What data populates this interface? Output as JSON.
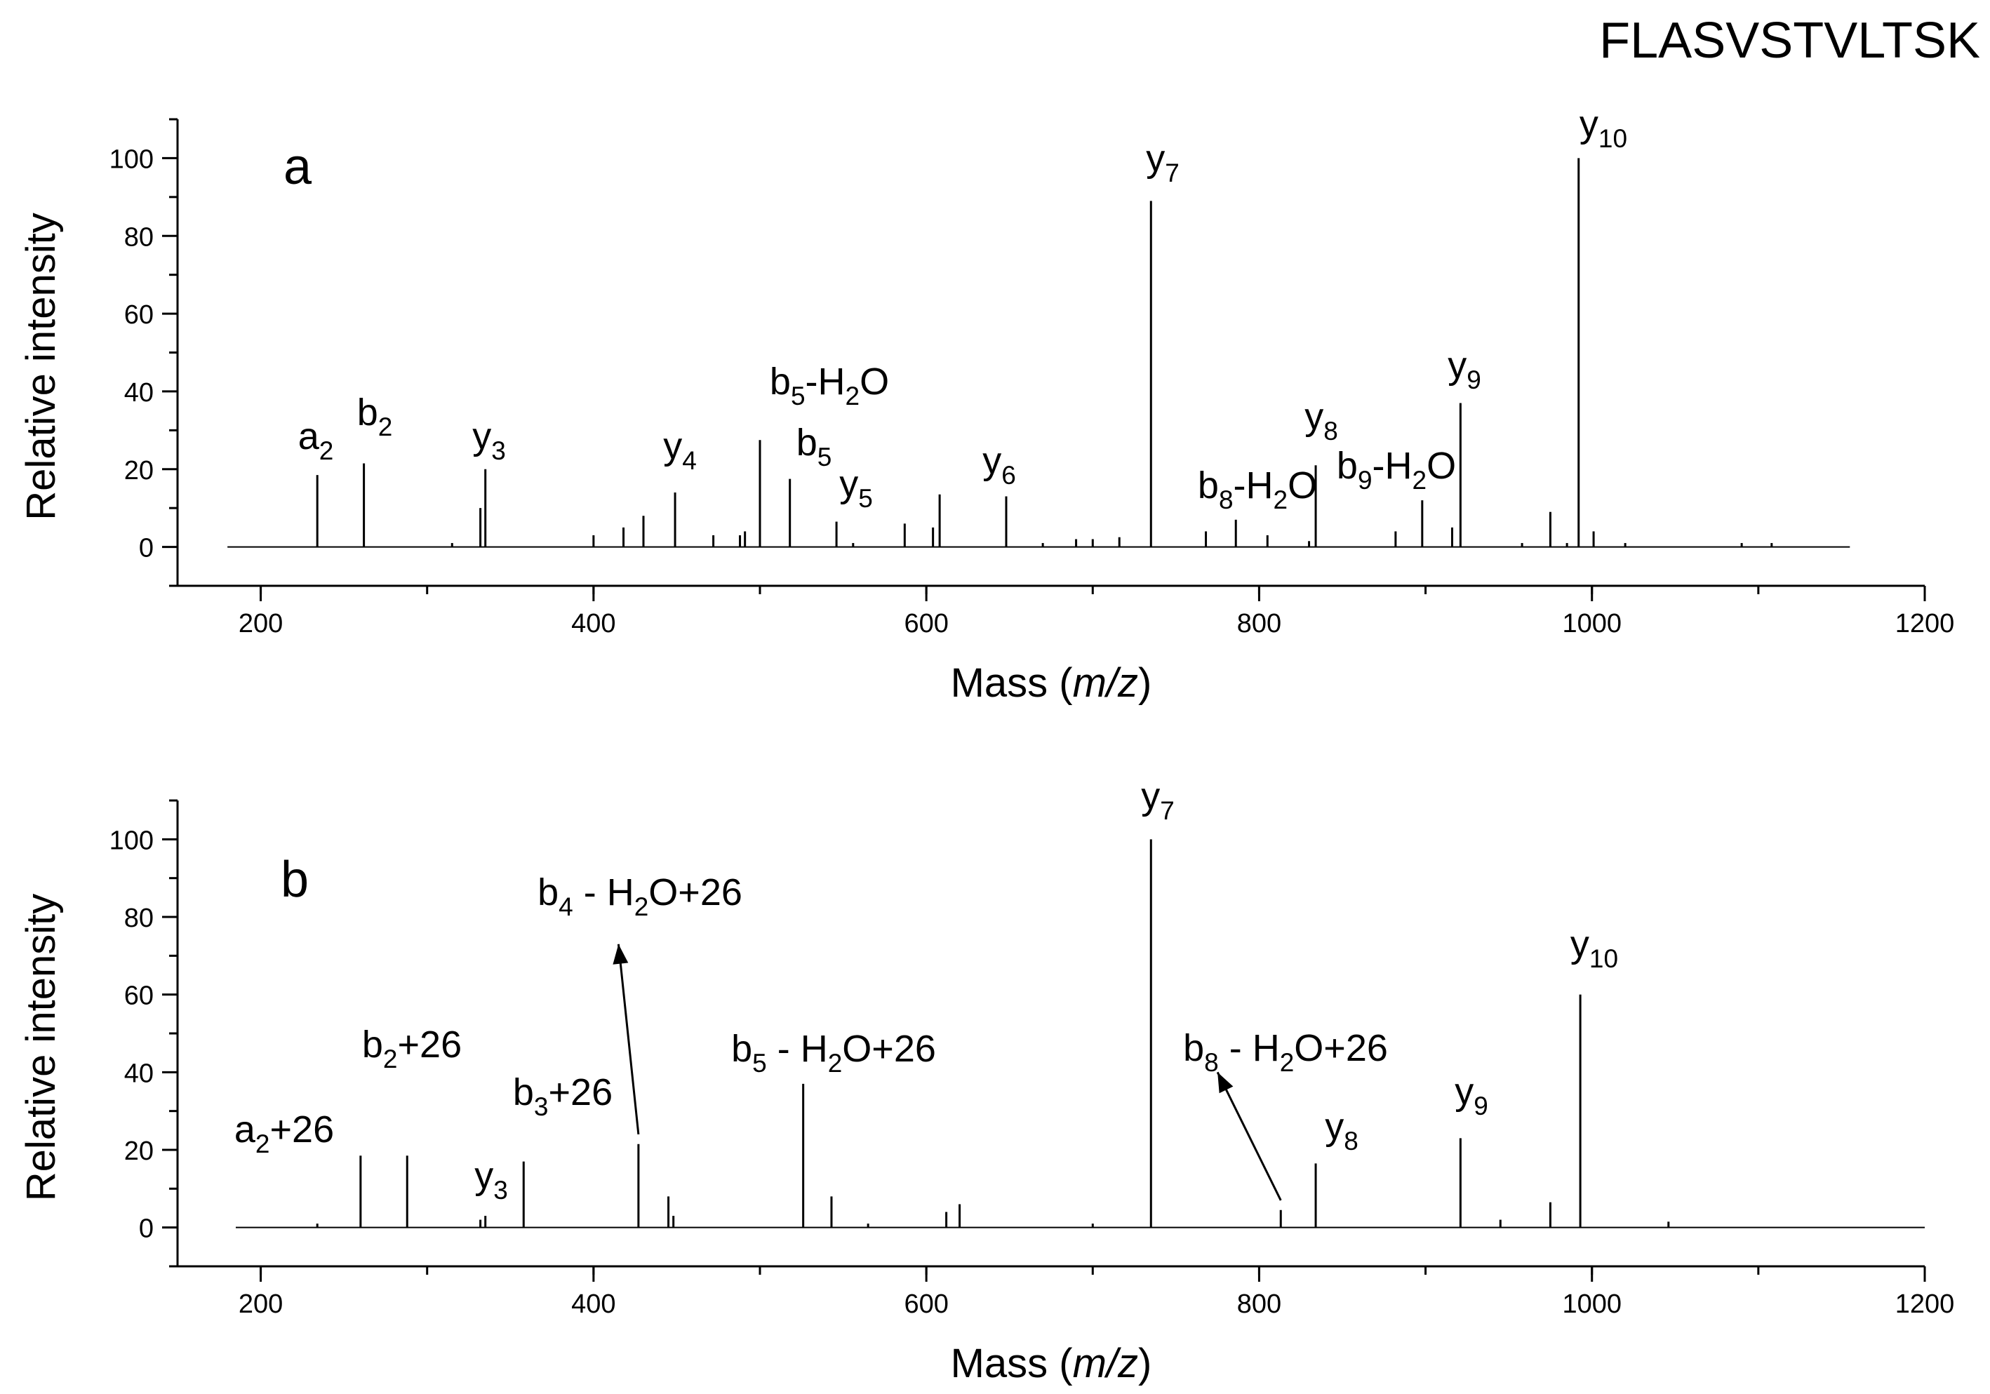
{
  "peptide": "FLASVSTVLTSK",
  "chart_data": [
    {
      "type": "bar",
      "panel": "a",
      "xlabel_prefix": "Mass (",
      "xlabel_italic": "m/z",
      "xlabel_suffix": ")",
      "ylabel": "Relative intensity",
      "xlim": [
        150,
        1200
      ],
      "ylim": [
        -10,
        110
      ],
      "data_range": [
        180,
        1155
      ],
      "xticks": [
        200,
        400,
        600,
        800,
        1000,
        1200
      ],
      "yticks": [
        0,
        20,
        40,
        60,
        80,
        100
      ],
      "peaks": [
        [
          234,
          18.5
        ],
        [
          262,
          21.5
        ],
        [
          315,
          1
        ],
        [
          332,
          10
        ],
        [
          335,
          20
        ],
        [
          400,
          3
        ],
        [
          418,
          5
        ],
        [
          430,
          8
        ],
        [
          449,
          14
        ],
        [
          472,
          3
        ],
        [
          488,
          3
        ],
        [
          491,
          4
        ],
        [
          500,
          27.5
        ],
        [
          518,
          17.5
        ],
        [
          546,
          6.5
        ],
        [
          556,
          1
        ],
        [
          587,
          6
        ],
        [
          604,
          5
        ],
        [
          608,
          13.5
        ],
        [
          648,
          13
        ],
        [
          670,
          1
        ],
        [
          690,
          2
        ],
        [
          700,
          2
        ],
        [
          716,
          2.5
        ],
        [
          735,
          89
        ],
        [
          768,
          4
        ],
        [
          786,
          7
        ],
        [
          805,
          3
        ],
        [
          830,
          1.5
        ],
        [
          834,
          21
        ],
        [
          882,
          4
        ],
        [
          898,
          12
        ],
        [
          916,
          5
        ],
        [
          921,
          37
        ],
        [
          958,
          1
        ],
        [
          975,
          9
        ],
        [
          985,
          1
        ],
        [
          992,
          100
        ],
        [
          1001,
          4
        ],
        [
          1020,
          1
        ],
        [
          1090,
          1
        ],
        [
          1108,
          1
        ]
      ],
      "annotations": [
        {
          "base": "a",
          "sub": "2",
          "rest": ""
        },
        {
          "base": "b",
          "sub": "2",
          "rest": ""
        },
        {
          "base": "y",
          "sub": "3",
          "rest": ""
        },
        {
          "base": "y",
          "sub": "4",
          "rest": ""
        },
        {
          "base": "b",
          "sub": "5",
          "rest": "-H",
          "sub2": "2",
          "rest2": "O"
        },
        {
          "base": "b",
          "sub": "5",
          "rest": ""
        },
        {
          "base": "y",
          "sub": "5",
          "rest": ""
        },
        {
          "base": "y",
          "sub": "6",
          "rest": ""
        },
        {
          "base": "y",
          "sub": "7",
          "rest": ""
        },
        {
          "base": "b",
          "sub": "8",
          "rest": "-H",
          "sub2": "2",
          "rest2": "O"
        },
        {
          "base": "y",
          "sub": "8",
          "rest": ""
        },
        {
          "base": "b",
          "sub": "9",
          "rest": "-H",
          "sub2": "2",
          "rest2": "O"
        },
        {
          "base": "y",
          "sub": "9",
          "rest": ""
        },
        {
          "base": "y",
          "sub": "10",
          "rest": ""
        }
      ],
      "arrows": []
    },
    {
      "type": "bar",
      "panel": "b",
      "xlabel_prefix": "Mass (",
      "xlabel_italic": "m/z",
      "xlabel_suffix": ")",
      "ylabel": "Relative intensity",
      "xlim": [
        150,
        1200
      ],
      "ylim": [
        -10,
        110
      ],
      "data_range": [
        185,
        1200
      ],
      "xticks": [
        200,
        400,
        600,
        800,
        1000,
        1200
      ],
      "yticks": [
        0,
        20,
        40,
        60,
        80,
        100
      ],
      "peaks": [
        [
          234,
          1
        ],
        [
          260,
          18.5
        ],
        [
          288,
          18.5
        ],
        [
          332,
          2
        ],
        [
          335,
          3
        ],
        [
          358,
          17
        ],
        [
          427,
          21.5
        ],
        [
          445,
          8
        ],
        [
          448,
          3
        ],
        [
          526,
          37
        ],
        [
          543,
          8
        ],
        [
          565,
          1
        ],
        [
          612,
          4
        ],
        [
          620,
          6
        ],
        [
          700,
          1
        ],
        [
          735,
          100
        ],
        [
          813,
          4.5
        ],
        [
          834,
          16.5
        ],
        [
          921,
          23
        ],
        [
          945,
          2
        ],
        [
          975,
          6.5
        ],
        [
          993,
          60
        ],
        [
          1046,
          1.5
        ]
      ],
      "annotations": [
        {
          "base": "a",
          "sub": "2",
          "rest": "+26"
        },
        {
          "base": "b",
          "sub": "2",
          "rest": "+26"
        },
        {
          "base": "b",
          "sub": "3",
          "rest": "+26"
        },
        {
          "base": "y",
          "sub": "3",
          "rest": ""
        },
        {
          "base": "b",
          "sub": "4",
          "rest": " - H",
          "sub2": "2",
          "rest2": "O+26"
        },
        {
          "base": "b",
          "sub": "5",
          "rest": " - H",
          "sub2": "2",
          "rest2": "O+26"
        },
        {
          "base": "y",
          "sub": "7",
          "rest": ""
        },
        {
          "base": "b",
          "sub": "8",
          "rest": " - H",
          "sub2": "2",
          "rest2": "O+26"
        },
        {
          "base": "y",
          "sub": "8",
          "rest": ""
        },
        {
          "base": "y",
          "sub": "9",
          "rest": ""
        },
        {
          "base": "y",
          "sub": "10",
          "rest": ""
        }
      ],
      "arrows": [
        {
          "from_mz": 427,
          "from_intensity": 24,
          "to_mz": 415,
          "to_intensity": 73
        },
        {
          "from_mz": 813,
          "from_intensity": 7,
          "to_mz": 775,
          "to_intensity": 40
        }
      ]
    }
  ]
}
